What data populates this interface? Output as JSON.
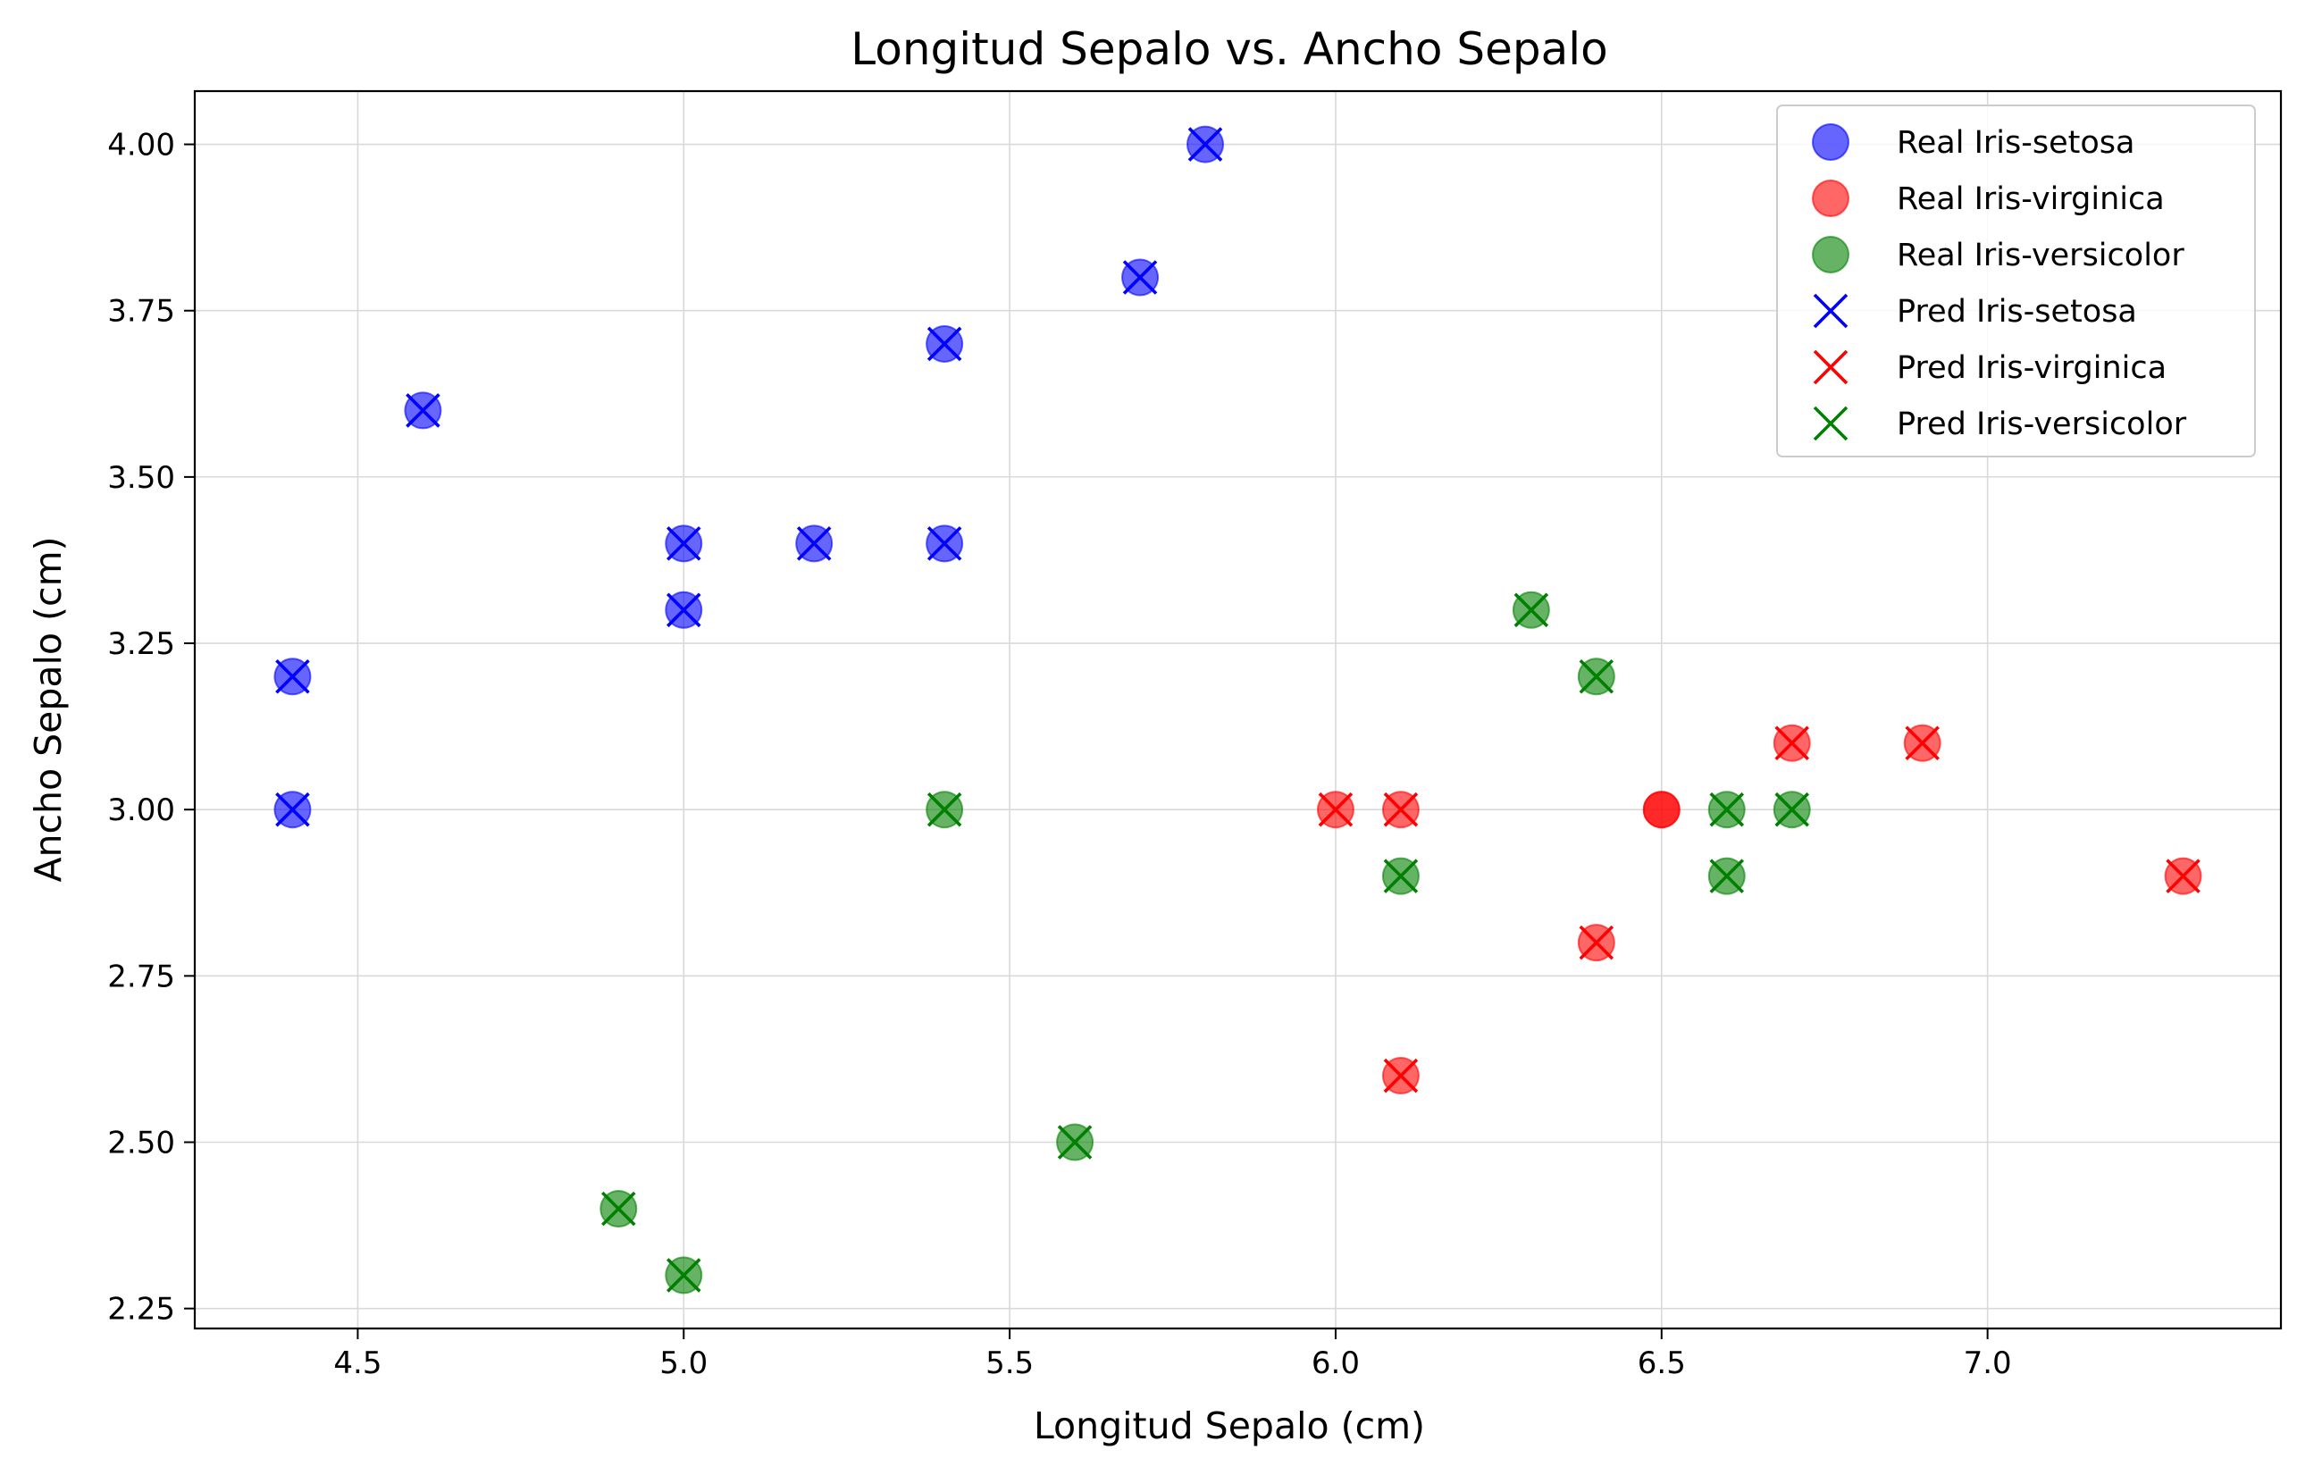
{
  "chart_data": {
    "type": "scatter",
    "title": "Longitud Sepalo vs. Ancho Sepalo",
    "xlabel": "Longitud Sepalo (cm)",
    "ylabel": "Ancho Sepalo (cm)",
    "xlim": [
      4.25,
      7.45
    ],
    "ylim": [
      2.22,
      4.08
    ],
    "xticks": [
      4.5,
      5.0,
      5.5,
      6.0,
      6.5,
      7.0
    ],
    "xtick_labels": [
      "4.5",
      "5.0",
      "5.5",
      "6.0",
      "6.5",
      "7.0"
    ],
    "yticks": [
      2.25,
      2.5,
      2.75,
      3.0,
      3.25,
      3.5,
      3.75,
      4.0
    ],
    "ytick_labels": [
      "2.25",
      "2.50",
      "2.75",
      "3.00",
      "3.25",
      "3.50",
      "3.75",
      "4.00"
    ],
    "grid": true,
    "legend_position": "top-right",
    "series": [
      {
        "name": "Real Iris-setosa",
        "marker": "circle",
        "color": "#0000ff",
        "points": [
          [
            5.8,
            4.0
          ],
          [
            5.7,
            3.8
          ],
          [
            5.4,
            3.7
          ],
          [
            4.6,
            3.6
          ],
          [
            5.0,
            3.4
          ],
          [
            5.2,
            3.4
          ],
          [
            5.4,
            3.4
          ],
          [
            5.0,
            3.3
          ],
          [
            4.4,
            3.2
          ],
          [
            4.4,
            3.0
          ]
        ]
      },
      {
        "name": "Real Iris-virginica",
        "marker": "circle",
        "color": "#ff0000",
        "points": [
          [
            6.7,
            3.1
          ],
          [
            6.9,
            3.1
          ],
          [
            6.0,
            3.0
          ],
          [
            6.1,
            3.0
          ],
          [
            6.5,
            3.0
          ],
          [
            6.5,
            3.0
          ],
          [
            7.3,
            2.9
          ],
          [
            6.4,
            2.8
          ],
          [
            6.1,
            2.6
          ]
        ]
      },
      {
        "name": "Real Iris-versicolor",
        "marker": "circle",
        "color": "#008000",
        "points": [
          [
            6.3,
            3.3
          ],
          [
            6.4,
            3.2
          ],
          [
            5.4,
            3.0
          ],
          [
            6.6,
            3.0
          ],
          [
            6.7,
            3.0
          ],
          [
            6.1,
            2.9
          ],
          [
            6.6,
            2.9
          ],
          [
            5.6,
            2.5
          ],
          [
            4.9,
            2.4
          ],
          [
            5.0,
            2.3
          ]
        ]
      },
      {
        "name": "Pred Iris-setosa",
        "marker": "x",
        "color": "#0000ff",
        "points": [
          [
            5.8,
            4.0
          ],
          [
            5.7,
            3.8
          ],
          [
            5.4,
            3.7
          ],
          [
            4.6,
            3.6
          ],
          [
            5.0,
            3.4
          ],
          [
            5.2,
            3.4
          ],
          [
            5.4,
            3.4
          ],
          [
            5.0,
            3.3
          ],
          [
            4.4,
            3.2
          ],
          [
            4.4,
            3.0
          ]
        ]
      },
      {
        "name": "Pred Iris-virginica",
        "marker": "x",
        "color": "#ff0000",
        "points": [
          [
            6.7,
            3.1
          ],
          [
            6.9,
            3.1
          ],
          [
            6.0,
            3.0
          ],
          [
            6.1,
            3.0
          ],
          [
            7.3,
            2.9
          ],
          [
            6.4,
            2.8
          ],
          [
            6.1,
            2.6
          ]
        ]
      },
      {
        "name": "Pred Iris-versicolor",
        "marker": "x",
        "color": "#008000",
        "points": [
          [
            6.3,
            3.3
          ],
          [
            6.4,
            3.2
          ],
          [
            5.4,
            3.0
          ],
          [
            6.6,
            3.0
          ],
          [
            6.7,
            3.0
          ],
          [
            6.1,
            2.9
          ],
          [
            6.6,
            2.9
          ],
          [
            5.6,
            2.5
          ],
          [
            4.9,
            2.4
          ],
          [
            5.0,
            2.3
          ]
        ]
      }
    ]
  }
}
